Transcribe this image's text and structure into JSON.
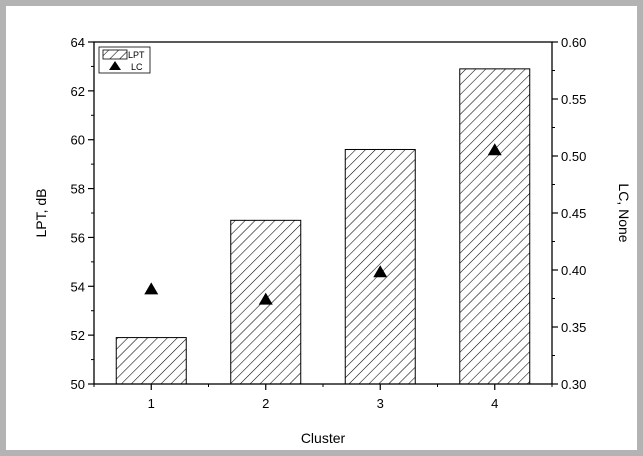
{
  "chart_data": {
    "type": "bar",
    "categories": [
      "1",
      "2",
      "3",
      "4"
    ],
    "xlabel": "Cluster",
    "series": [
      {
        "name": "LPT",
        "type": "bar",
        "axis": "left",
        "values": [
          51.9,
          56.7,
          59.6,
          62.9
        ],
        "pattern": "diagonal-hatch"
      },
      {
        "name": "LC",
        "type": "scatter",
        "axis": "right",
        "marker": "triangle",
        "values": [
          0.383,
          0.374,
          0.398,
          0.505
        ]
      }
    ],
    "left_axis": {
      "label": "LPT, dB",
      "range": [
        50,
        64
      ],
      "ticks": [
        "50",
        "52",
        "54",
        "56",
        "58",
        "60",
        "62",
        "64"
      ]
    },
    "right_axis": {
      "label": "LC, None",
      "range": [
        0.3,
        0.6
      ],
      "ticks": [
        "0.30",
        "0.35",
        "0.40",
        "0.45",
        "0.50",
        "0.55",
        "0.60"
      ]
    },
    "grid": false,
    "legend": {
      "position": "top-left",
      "entries": [
        "LPT",
        "LC"
      ]
    },
    "colors": {
      "frame": "#b3b3b3",
      "ink": "#000000",
      "bar_fill": "#ffffff"
    }
  }
}
